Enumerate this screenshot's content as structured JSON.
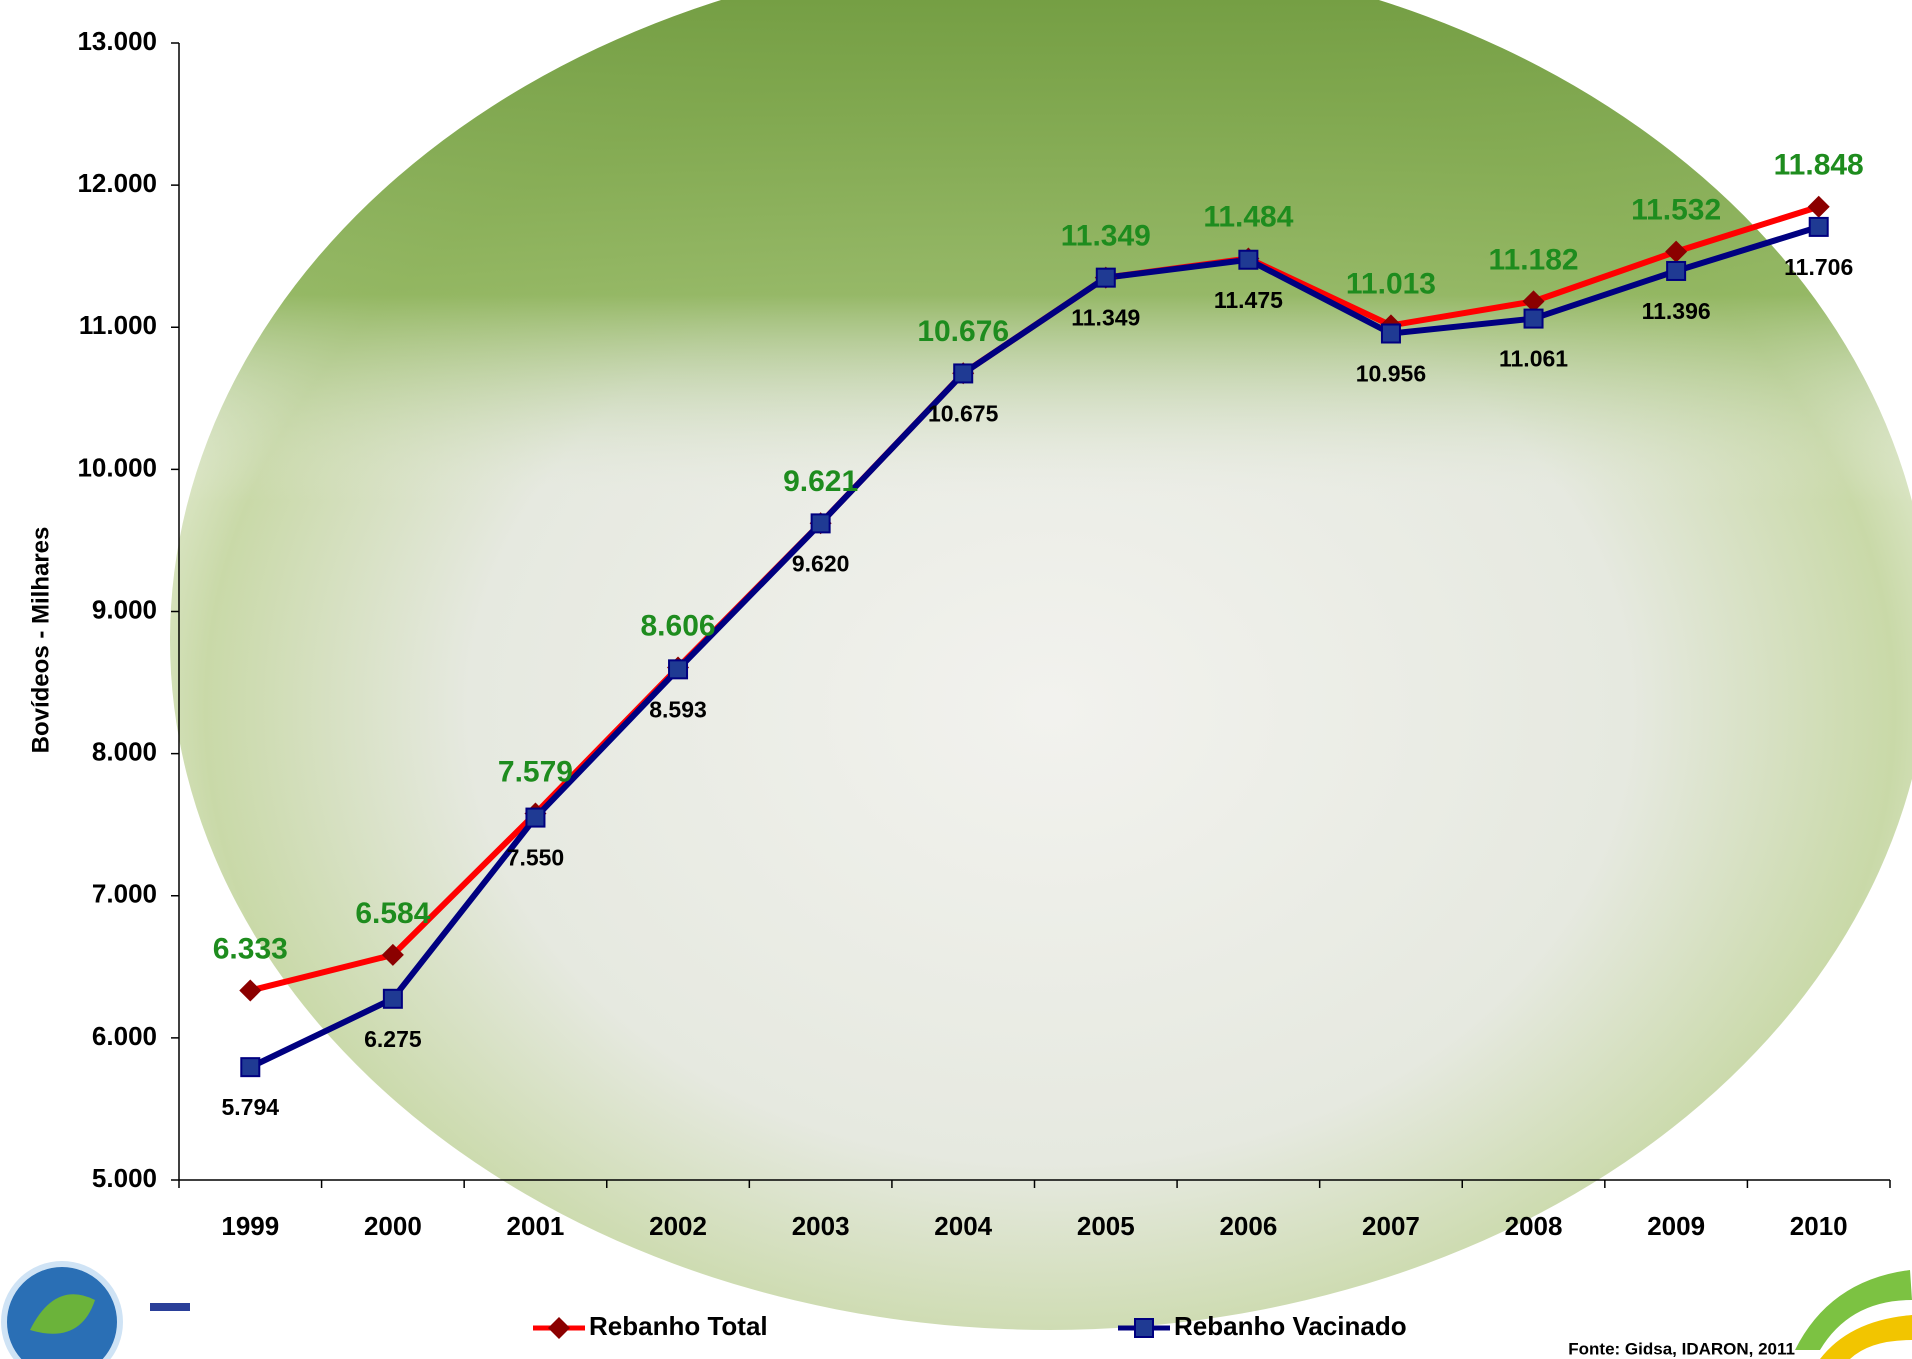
{
  "chart_data": {
    "type": "line",
    "y_label": "Bovídeos - Milhares",
    "source": "Fonte: Gidsa, IDARON, 2011",
    "categories": [
      "1999",
      "2000",
      "2001",
      "2002",
      "2003",
      "2004",
      "2005",
      "2006",
      "2007",
      "2008",
      "2009",
      "2010"
    ],
    "series": [
      {
        "name": "Rebanho Total",
        "color": "#ff0000",
        "marker_color": "#8b0000",
        "marker": "diamond",
        "label_color": "#1e8c1e",
        "values": [
          6333,
          6584,
          7579,
          8606,
          9621,
          10676,
          11349,
          11484,
          11013,
          11182,
          11532,
          11848
        ],
        "value_labels": [
          "6.333",
          "6.584",
          "7.579",
          "8.606",
          "9.621",
          "10.676",
          "11.349",
          "11.484",
          "11.013",
          "11.182",
          "11.532",
          "11.848"
        ]
      },
      {
        "name": "Rebanho Vacinado",
        "color": "#000080",
        "marker_color": "#1f3a93",
        "marker": "square",
        "label_color": "#000000",
        "values": [
          5794,
          6275,
          7550,
          8593,
          9620,
          10675,
          11349,
          11475,
          10956,
          11061,
          11396,
          11706
        ],
        "value_labels": [
          "5.794",
          "6.275",
          "7.550",
          "8.593",
          "9.620",
          "10.675",
          "11.349",
          "11.475",
          "10.956",
          "11.061",
          "11.396",
          "11.706"
        ]
      }
    ],
    "ylim": [
      5000,
      13000
    ],
    "yticks": [
      {
        "value": 5000,
        "label": "5.000"
      },
      {
        "value": 6000,
        "label": "6.000"
      },
      {
        "value": 7000,
        "label": "7.000"
      },
      {
        "value": 8000,
        "label": "8.000"
      },
      {
        "value": 9000,
        "label": "9.000"
      },
      {
        "value": 10000,
        "label": "10.000"
      },
      {
        "value": 11000,
        "label": "11.000"
      },
      {
        "value": 12000,
        "label": "12.000"
      },
      {
        "value": 13000,
        "label": "13.000"
      }
    ],
    "legend": "bottom"
  }
}
